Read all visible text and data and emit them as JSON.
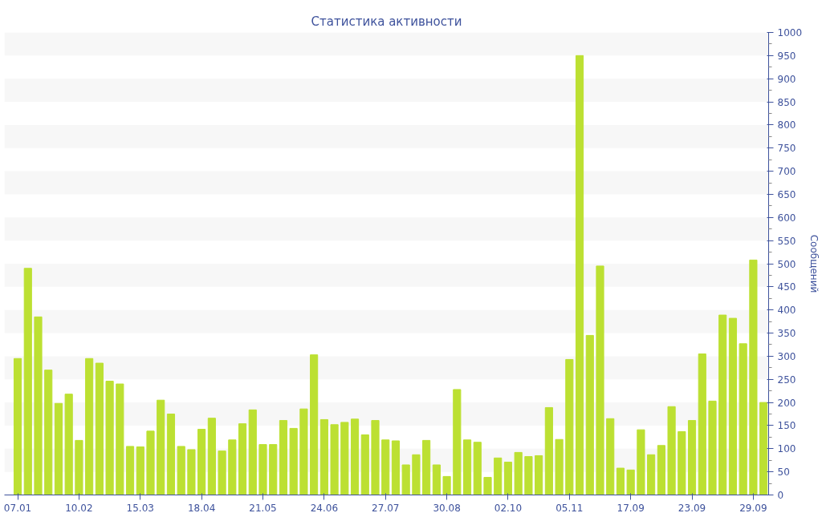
{
  "chart_data": {
    "type": "bar",
    "title": "Статистика активности",
    "ylabel": "Сообщений",
    "color": "#bce032",
    "categories": [
      "07.01",
      null,
      null,
      null,
      null,
      null,
      "10.02",
      null,
      null,
      null,
      null,
      null,
      "15.03",
      null,
      null,
      null,
      null,
      null,
      "18.04",
      null,
      null,
      null,
      null,
      null,
      "21.05",
      null,
      null,
      null,
      null,
      null,
      "24.06",
      null,
      null,
      null,
      null,
      null,
      "27.07",
      null,
      null,
      null,
      null,
      null,
      "30.08",
      null,
      null,
      null,
      null,
      null,
      "02.10",
      null,
      null,
      null,
      null,
      null,
      "05.11",
      null,
      null,
      null,
      null,
      null,
      "17.09",
      null,
      null,
      null,
      null,
      null,
      "23.09",
      null,
      null,
      null,
      null,
      null,
      "29.09",
      null
    ],
    "values": [
      295,
      490,
      385,
      270,
      198,
      218,
      118,
      295,
      285,
      246,
      240,
      105,
      104,
      138,
      205,
      175,
      105,
      98,
      142,
      166,
      95,
      119,
      154,
      184,
      109,
      109,
      161,
      144,
      186,
      303,
      163,
      152,
      157,
      164,
      130,
      161,
      119,
      117,
      65,
      87,
      118,
      65,
      40,
      228,
      119,
      114,
      38,
      80,
      71,
      92,
      83,
      85,
      189,
      120,
      293,
      950,
      345,
      495,
      165,
      58,
      54,
      141,
      87,
      107,
      191,
      137,
      161,
      305,
      203,
      389,
      382,
      327,
      508,
      200
    ],
    "ylim": [
      0,
      1000
    ],
    "yticks": [
      0,
      50,
      100,
      150,
      200,
      250,
      300,
      350,
      400,
      450,
      500,
      550,
      600,
      650,
      700,
      750,
      800,
      850,
      900,
      950,
      1000
    ],
    "grid": false
  }
}
